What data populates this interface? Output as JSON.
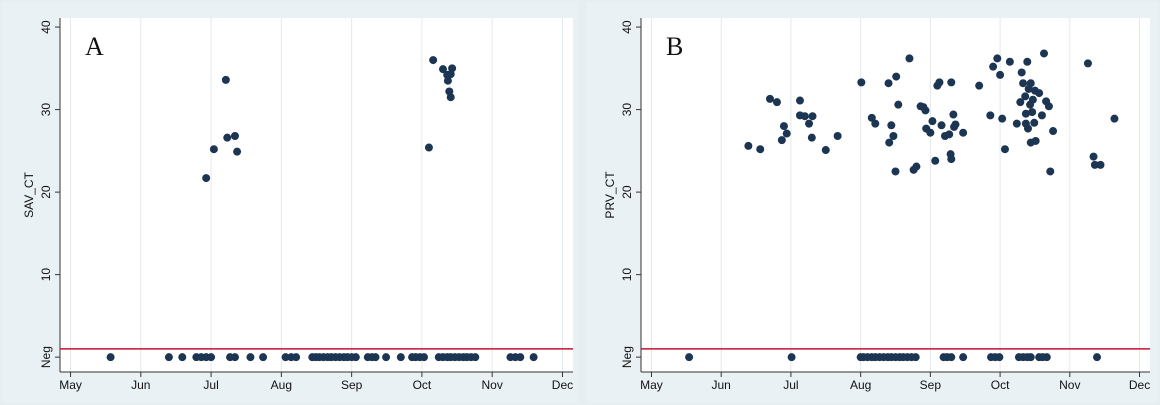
{
  "chart_data": [
    {
      "type": "scatter",
      "title": "A",
      "y_label": "SAV_CT",
      "color": "#1c3553",
      "hline": 1,
      "hline_color": "#c8102e",
      "grid": "x",
      "xlim": [
        -0.15,
        7.15
      ],
      "ylim": [
        -1.8,
        41.1
      ],
      "xticks": [
        {
          "value": 0,
          "label": "May"
        },
        {
          "value": 1,
          "label": "Jun"
        },
        {
          "value": 2,
          "label": "Jul"
        },
        {
          "value": 3,
          "label": "Aug"
        },
        {
          "value": 4,
          "label": "Sep"
        },
        {
          "value": 5,
          "label": "Oct"
        },
        {
          "value": 6,
          "label": "Nov"
        },
        {
          "value": 7,
          "label": "Dec"
        }
      ],
      "yticks": [
        {
          "value": 0,
          "label": "Neg"
        },
        10,
        20,
        30,
        40
      ],
      "x": [
        1.93,
        2.04,
        2.21,
        2.23,
        2.34,
        2.37,
        5.1,
        5.16,
        5.3,
        5.36,
        5.37,
        5.43,
        5.41,
        5.39,
        5.41,
        0.57,
        1.4,
        1.59,
        1.79,
        1.86,
        1.93,
        2.0,
        2.27,
        2.34,
        2.56,
        2.74,
        3.06,
        3.14,
        3.21,
        3.44,
        3.49,
        3.54,
        3.6,
        3.66,
        3.71,
        3.77,
        3.83,
        3.89,
        3.94,
        4.0,
        4.06,
        4.23,
        4.29,
        4.34,
        4.49,
        4.7,
        4.86,
        4.91,
        4.97,
        5.03,
        5.24,
        5.3,
        5.36,
        5.41,
        5.47,
        5.53,
        5.59,
        5.64,
        5.7,
        5.76,
        6.26,
        6.33,
        6.4,
        6.59
      ],
      "values": [
        21.7,
        25.2,
        33.6,
        26.6,
        26.8,
        24.9,
        25.4,
        36.0,
        34.9,
        34.2,
        33.5,
        35.0,
        34.3,
        32.2,
        31.5,
        0,
        0,
        0,
        0,
        0,
        0,
        0,
        0,
        0,
        0,
        0,
        0,
        0,
        0,
        0,
        0,
        0,
        0,
        0,
        0,
        0,
        0,
        0,
        0,
        0,
        0,
        0,
        0,
        0,
        0,
        0,
        0,
        0,
        0,
        0,
        0,
        0,
        0,
        0,
        0,
        0,
        0,
        0,
        0,
        0,
        0,
        0,
        0,
        0
      ]
    },
    {
      "type": "scatter",
      "title": "B",
      "y_label": "PRV_CT",
      "color": "#1c3553",
      "hline": 1,
      "hline_color": "#c8102e",
      "grid": "x",
      "xlim": [
        -0.15,
        7.15
      ],
      "ylim": [
        -1.8,
        41.1
      ],
      "xticks": [
        {
          "value": 0,
          "label": "May"
        },
        {
          "value": 1,
          "label": "Jun"
        },
        {
          "value": 2,
          "label": "Jul"
        },
        {
          "value": 3,
          "label": "Aug"
        },
        {
          "value": 4,
          "label": "Sep"
        },
        {
          "value": 5,
          "label": "Oct"
        },
        {
          "value": 6,
          "label": "Nov"
        },
        {
          "value": 7,
          "label": "Dec"
        }
      ],
      "yticks": [
        {
          "value": 0,
          "label": "Neg"
        },
        10,
        20,
        30,
        40
      ],
      "x": [
        1.39,
        1.56,
        1.7,
        1.8,
        1.87,
        1.9,
        1.94,
        2.13,
        2.13,
        2.2,
        2.26,
        2.3,
        2.31,
        2.5,
        2.67,
        3.01,
        3.16,
        3.21,
        3.4,
        3.41,
        3.44,
        3.47,
        3.5,
        3.54,
        3.51,
        3.7,
        3.76,
        3.8,
        3.86,
        3.9,
        3.93,
        3.94,
        4.0,
        4.03,
        4.07,
        4.1,
        4.13,
        4.16,
        4.21,
        4.27,
        4.29,
        4.3,
        4.3,
        4.33,
        4.36,
        4.34,
        4.47,
        4.7,
        4.86,
        4.9,
        4.96,
        5.0,
        5.03,
        5.07,
        5.14,
        5.24,
        5.29,
        5.31,
        5.33,
        5.36,
        5.37,
        5.39,
        5.37,
        5.4,
        5.41,
        5.43,
        5.44,
        5.44,
        5.46,
        5.47,
        5.49,
        5.5,
        5.51,
        5.56,
        5.6,
        5.63,
        5.66,
        5.7,
        5.72,
        5.76,
        6.26,
        6.34,
        6.36,
        6.44,
        6.64,
        0.54,
        2.01,
        3.0,
        3.04,
        3.1,
        3.16,
        3.21,
        3.27,
        3.33,
        3.39,
        3.44,
        3.5,
        3.56,
        3.61,
        3.67,
        3.73,
        3.79,
        4.19,
        4.24,
        4.3,
        4.47,
        4.87,
        4.93,
        4.99,
        5.27,
        5.33,
        5.39,
        5.44,
        5.56,
        5.61,
        5.67,
        6.39
      ],
      "values": [
        25.6,
        25.2,
        31.3,
        30.9,
        26.3,
        28,
        27.1,
        31.1,
        29.3,
        29.2,
        28.3,
        26.6,
        29.2,
        25.1,
        26.8,
        33.3,
        29,
        28.3,
        33.2,
        26,
        28.1,
        26.8,
        22.5,
        30.6,
        34,
        36.2,
        22.7,
        23.1,
        30.4,
        30.3,
        29.9,
        27.7,
        27.2,
        28.6,
        23.8,
        32.9,
        33.3,
        28.1,
        26.8,
        27,
        24.6,
        24,
        33.3,
        29.4,
        28.2,
        27.9,
        27.2,
        32.9,
        29.3,
        35.2,
        36.2,
        34.2,
        28.9,
        25.2,
        35.8,
        28.3,
        30.9,
        34.5,
        33.2,
        31.6,
        29.5,
        35.8,
        28.3,
        27.7,
        32.5,
        30.6,
        33.2,
        26,
        29.7,
        31.2,
        28.4,
        32.3,
        26.2,
        32,
        29.3,
        36.8,
        31,
        30.4,
        22.5,
        27.4,
        35.6,
        24.3,
        23.3,
        23.3,
        28.9,
        0,
        0,
        0,
        0,
        0,
        0,
        0,
        0,
        0,
        0,
        0,
        0,
        0,
        0,
        0,
        0,
        0,
        0,
        0,
        0,
        0,
        0,
        0,
        0,
        0,
        0,
        0,
        0,
        0,
        0,
        0,
        0
      ]
    }
  ]
}
